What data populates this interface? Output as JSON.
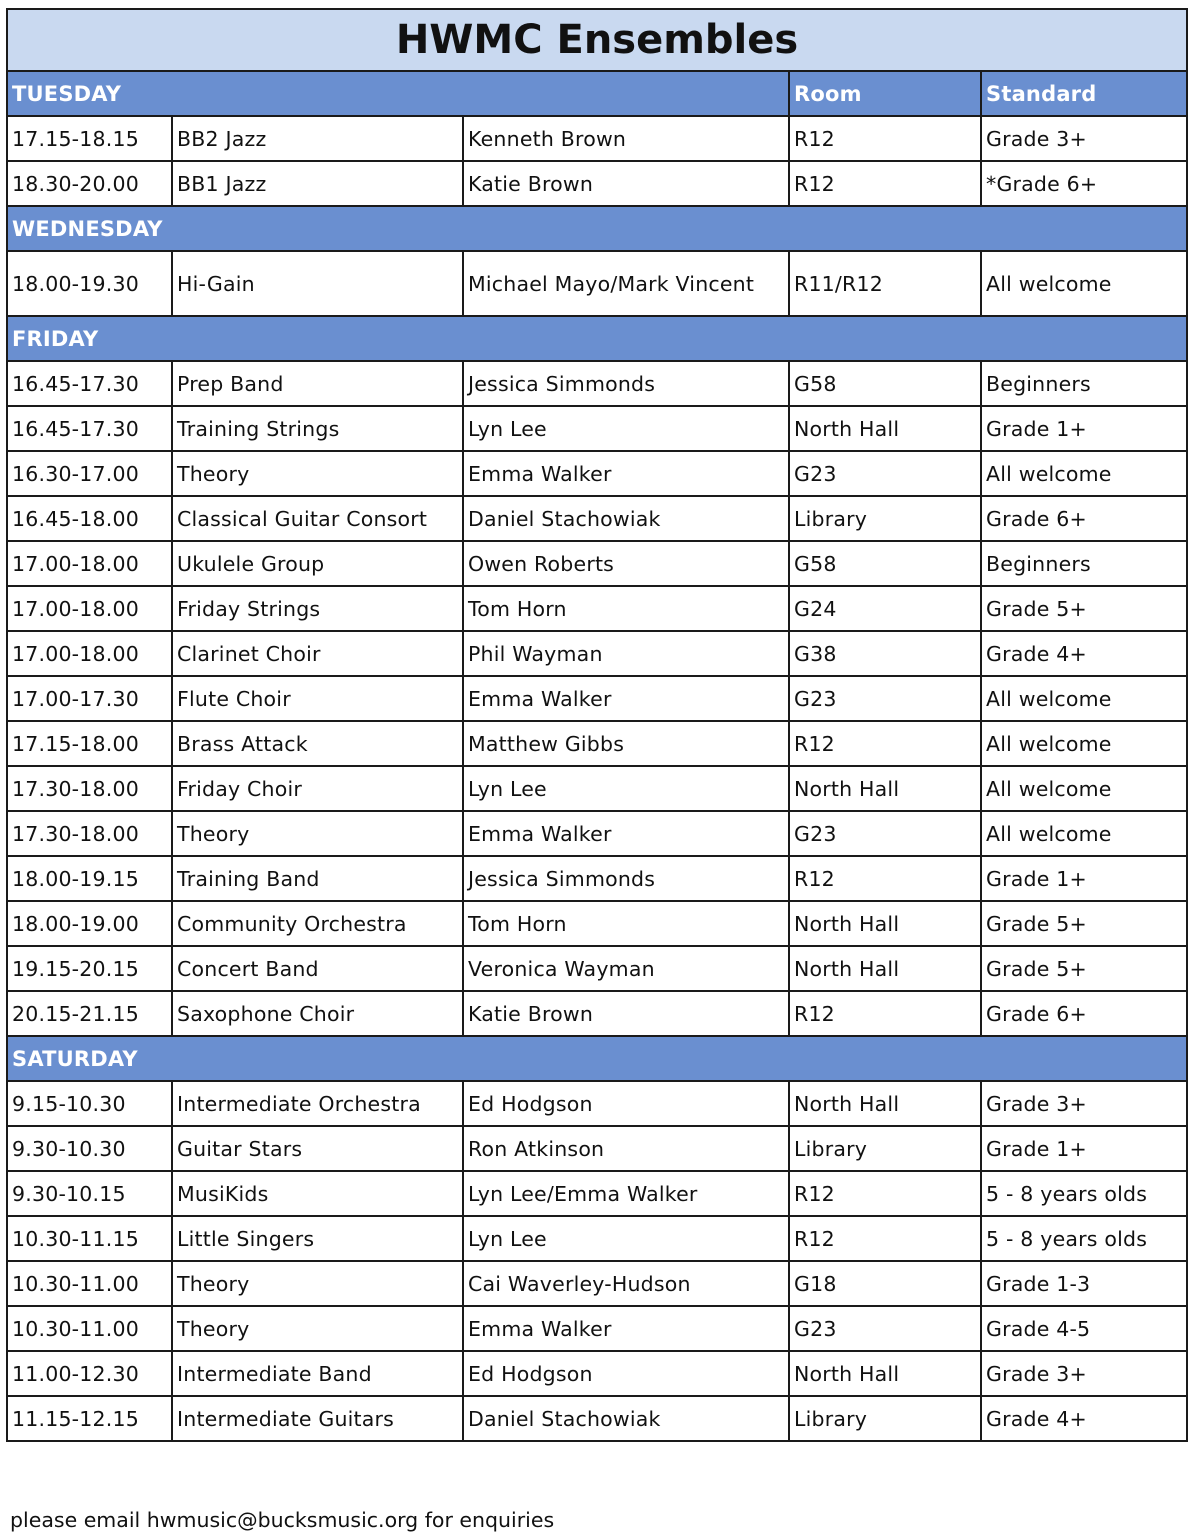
{
  "title": "HWMC Ensembles",
  "columns": {
    "room": "Room",
    "standard": "Standard"
  },
  "colors": {
    "title_bg": "#c9d9f0",
    "header_bg": "#6a8fd0"
  },
  "sections": [
    {
      "day": "TUESDAY",
      "show_columns": true,
      "rows": [
        [
          "17.15-18.15",
          "BB2 Jazz",
          "Kenneth Brown",
          "R12",
          "Grade 3+"
        ],
        [
          "18.30-20.00",
          "BB1 Jazz",
          "Katie Brown",
          "R12",
          "*Grade 6+"
        ]
      ]
    },
    {
      "day": "WEDNESDAY",
      "rows": [
        [
          "18.00-19.30",
          "Hi-Gain",
          "Michael Mayo/Mark Vincent",
          "R11/R12",
          "All welcome"
        ]
      ]
    },
    {
      "day": "FRIDAY",
      "rows": [
        [
          "16.45-17.30",
          "Prep Band",
          "Jessica Simmonds",
          "G58",
          "Beginners"
        ],
        [
          "16.45-17.30",
          "Training Strings",
          "Lyn Lee",
          "North Hall",
          "Grade 1+"
        ],
        [
          "16.30-17.00",
          "Theory",
          "Emma Walker",
          "G23",
          "All welcome"
        ],
        [
          "16.45-18.00",
          "Classical Guitar Consort",
          "Daniel Stachowiak",
          "Library",
          "Grade 6+"
        ],
        [
          "17.00-18.00",
          "Ukulele Group",
          "Owen Roberts",
          "G58",
          "Beginners"
        ],
        [
          "17.00-18.00",
          "Friday Strings",
          "Tom Horn",
          "G24",
          "Grade 5+"
        ],
        [
          "17.00-18.00",
          "Clarinet Choir",
          "Phil Wayman",
          "G38",
          "Grade 4+"
        ],
        [
          "17.00-17.30",
          "Flute Choir",
          "Emma Walker",
          "G23",
          "All welcome"
        ],
        [
          "17.15-18.00",
          "Brass Attack",
          "Matthew Gibbs",
          "R12",
          "All welcome"
        ],
        [
          "17.30-18.00",
          "Friday Choir",
          "Lyn Lee",
          "North Hall",
          "All welcome"
        ],
        [
          "17.30-18.00",
          "Theory",
          "Emma Walker",
          "G23",
          "All welcome"
        ],
        [
          "18.00-19.15",
          "Training Band",
          "Jessica Simmonds",
          "R12",
          "Grade 1+"
        ],
        [
          "18.00-19.00",
          "Community Orchestra",
          "Tom Horn",
          "North Hall",
          "Grade 5+"
        ],
        [
          "19.15-20.15",
          "Concert Band",
          "Veronica Wayman",
          "North Hall",
          "Grade 5+"
        ],
        [
          "20.15-21.15",
          "Saxophone Choir",
          "Katie Brown",
          "R12",
          "Grade 6+"
        ]
      ]
    },
    {
      "day": "SATURDAY",
      "rows": [
        [
          "9.15-10.30",
          "Intermediate Orchestra",
          "Ed Hodgson",
          "North Hall",
          "Grade 3+"
        ],
        [
          "9.30-10.30",
          "Guitar Stars",
          "Ron Atkinson",
          "Library",
          "Grade 1+"
        ],
        [
          "9.30-10.15",
          "MusiKids",
          "Lyn Lee/Emma Walker",
          "R12",
          "5 - 8 years olds"
        ],
        [
          "10.30-11.15",
          "Little Singers",
          "Lyn Lee",
          "R12",
          "5 - 8 years olds"
        ],
        [
          "10.30-11.00",
          "Theory",
          "Cai Waverley-Hudson",
          "G18",
          "Grade 1-3"
        ],
        [
          "10.30-11.00",
          "Theory",
          "Emma Walker",
          "G23",
          "Grade 4-5"
        ],
        [
          "11.00-12.30",
          "Intermediate Band",
          "Ed Hodgson",
          "North Hall",
          "Grade 3+"
        ],
        [
          "11.15-12.15",
          "Intermediate Guitars",
          "Daniel Stachowiak",
          "Library",
          "Grade 4+"
        ]
      ]
    }
  ],
  "footer": "please email hwmusic@bucksmusic.org for enquiries"
}
